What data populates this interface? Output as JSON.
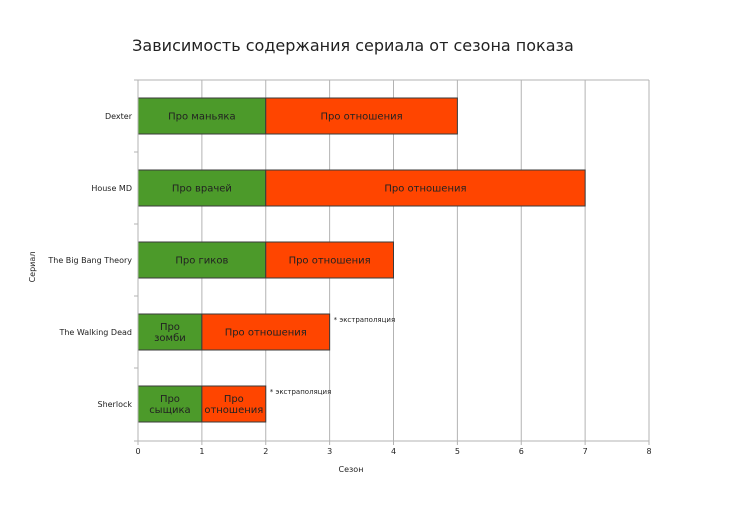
{
  "chart_data": {
    "type": "bar",
    "orientation": "horizontal",
    "stacked": true,
    "title": "Зависимость содержания сериала от сезона показа",
    "xlabel": "Сезон",
    "ylabel": "Сериал",
    "xlim": [
      0,
      8
    ],
    "xticks": [
      "0",
      "1",
      "2",
      "3",
      "4",
      "5",
      "6",
      "7",
      "8"
    ],
    "grid": "vertical",
    "legend": "none",
    "colors": {
      "first": "#4c9a2a",
      "second": "#ff4500"
    },
    "categories": [
      "Dexter",
      "House MD",
      "The Big Bang Theory",
      "The Walking Dead",
      "Sherlock"
    ],
    "bars": [
      {
        "category": "Dexter",
        "segments": [
          {
            "label": [
              "Про маньяка"
            ],
            "value": 2,
            "color": "first"
          },
          {
            "label": [
              "Про отношения"
            ],
            "value": 3,
            "color": "second"
          }
        ],
        "note": ""
      },
      {
        "category": "House MD",
        "segments": [
          {
            "label": [
              "Про врачей"
            ],
            "value": 2,
            "color": "first"
          },
          {
            "label": [
              "Про отношения"
            ],
            "value": 5,
            "color": "second"
          }
        ],
        "note": ""
      },
      {
        "category": "The Big Bang Theory",
        "segments": [
          {
            "label": [
              "Про гиков"
            ],
            "value": 2,
            "color": "first"
          },
          {
            "label": [
              "Про отношения"
            ],
            "value": 2,
            "color": "second"
          }
        ],
        "note": ""
      },
      {
        "category": "The Walking Dead",
        "segments": [
          {
            "label": [
              "Про",
              "зомби"
            ],
            "value": 1,
            "color": "first"
          },
          {
            "label": [
              "Про отношения"
            ],
            "value": 2,
            "color": "second"
          }
        ],
        "note": "* экстраполяция"
      },
      {
        "category": "Sherlock",
        "segments": [
          {
            "label": [
              "Про",
              "сыщика"
            ],
            "value": 1,
            "color": "first"
          },
          {
            "label": [
              "Про",
              "отношения"
            ],
            "value": 1,
            "color": "second"
          }
        ],
        "note": "* экстраполяция"
      }
    ]
  }
}
